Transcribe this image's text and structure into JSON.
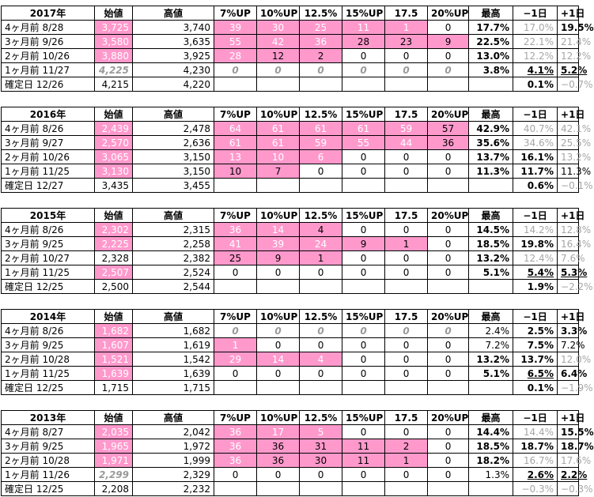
{
  "headers": [
    "始値",
    "高値",
    "7%UP",
    "10%UP",
    "12.5%",
    "15%UP",
    "17.5",
    "20%UP",
    "最高",
    "−1日",
    "+1日"
  ],
  "colors": {
    "pink_fill": "#ff99cc",
    "gray_text": "#a6a6a6",
    "white_text": "#ffffff"
  },
  "blocks": [
    {
      "year": "2017年",
      "rows": [
        {
          "label": "4ヶ月前  8/28",
          "open": "3,725",
          "high": "3,740",
          "up": [
            "39",
            "30",
            "25",
            "11",
            "1",
            "0"
          ],
          "max": "17.7%",
          "m1": "17.0%",
          "p1": "19.5%"
        },
        {
          "label": "3ヶ月前  9/26",
          "open": "3,580",
          "high": "3,635",
          "up": [
            "55",
            "42",
            "36",
            "28",
            "23",
            "9"
          ],
          "max": "22.5%",
          "m1": "22.1%",
          "p1": "21.4%"
        },
        {
          "label": "2ヶ月前  10/26",
          "open": "3,880",
          "high": "3,925",
          "up": [
            "28",
            "12",
            "2",
            "0",
            "0",
            "0"
          ],
          "max": "13.0%",
          "m1": "12.2%",
          "p1": "12.2%"
        },
        {
          "label": "1ヶ月前  11/27",
          "open": "4,225",
          "high": "4,230",
          "up": [
            "0",
            "0",
            "0",
            "0",
            "0",
            "0"
          ],
          "max": "3.8%",
          "m1": "4.1%",
          "p1": "5.2%"
        },
        {
          "label": "確定日  12/26",
          "open": "4,215",
          "high": "4,220",
          "m1": "0.1%",
          "p1": "−0.7%"
        }
      ]
    },
    {
      "year": "2016年",
      "rows": [
        {
          "label": "4ヶ月前  8/26",
          "open": "2,439",
          "high": "2,478",
          "up": [
            "64",
            "61",
            "61",
            "61",
            "59",
            "57"
          ],
          "max": "42.9%",
          "m1": "40.7%",
          "p1": "42.1%"
        },
        {
          "label": "3ヶ月前  9/27",
          "open": "2,570",
          "high": "2,636",
          "up": [
            "61",
            "61",
            "59",
            "55",
            "44",
            "36"
          ],
          "max": "35.6%",
          "m1": "34.6%",
          "p1": "25.5%"
        },
        {
          "label": "2ヶ月前  10/26",
          "open": "3,065",
          "high": "3,150",
          "up": [
            "13",
            "10",
            "6",
            "0",
            "0",
            "0"
          ],
          "max": "13.7%",
          "m1": "16.1%",
          "p1": "13.2%"
        },
        {
          "label": "1ヶ月前  11/25",
          "open": "3,130",
          "high": "3,150",
          "up": [
            "10",
            "7",
            "0",
            "0",
            "0",
            "0"
          ],
          "max": "11.3%",
          "m1": "11.7%",
          "p1": "11.3%"
        },
        {
          "label": "確定日  12/27",
          "open": "3,435",
          "high": "3,455",
          "m1": "0.6%",
          "p1": "−0.1%"
        }
      ]
    },
    {
      "year": "2015年",
      "rows": [
        {
          "label": "4ヶ月前  8/26",
          "open": "2,302",
          "high": "2,315",
          "up": [
            "36",
            "14",
            "4",
            "0",
            "0",
            "0"
          ],
          "max": "14.5%",
          "m1": "14.2%",
          "p1": "12.8%"
        },
        {
          "label": "3ヶ月前  9/25",
          "open": "2,225",
          "high": "2,258",
          "up": [
            "41",
            "39",
            "24",
            "9",
            "1",
            "0"
          ],
          "max": "18.5%",
          "m1": "19.8%",
          "p1": "16.4%"
        },
        {
          "label": "2ヶ月前  10/27",
          "open": "2,328",
          "high": "2,382",
          "up": [
            "25",
            "9",
            "1",
            "0",
            "0",
            "0"
          ],
          "max": "13.2%",
          "m1": "12.4%",
          "p1": "7.6%"
        },
        {
          "label": "1ヶ月前  11/25",
          "open": "2,507",
          "high": "2,524",
          "up": [
            "0",
            "0",
            "0",
            "0",
            "0",
            "0"
          ],
          "max": "5.1%",
          "m1": "5.4%",
          "p1": "5.3%"
        },
        {
          "label": "確定日  12/25",
          "open": "2,500",
          "high": "2,544",
          "m1": "1.9%",
          "p1": "−2.2%"
        }
      ]
    },
    {
      "year": "2014年",
      "rows": [
        {
          "label": "4ヶ月前  8/26",
          "open": "1,682",
          "high": "1,682",
          "up": [
            "0",
            "0",
            "0",
            "0",
            "0",
            "0"
          ],
          "max": "2.4%",
          "m1": "2.5%",
          "p1": "3.3%"
        },
        {
          "label": "3ヶ月前  9/25",
          "open": "1,607",
          "high": "1,619",
          "up": [
            "1",
            "0",
            "0",
            "0",
            "0",
            "0"
          ],
          "max": "7.2%",
          "m1": "7.5%",
          "p1": "7.2%"
        },
        {
          "label": "2ヶ月前  10/28",
          "open": "1,521",
          "high": "1,542",
          "up": [
            "29",
            "14",
            "4",
            "0",
            "0",
            "0"
          ],
          "max": "13.2%",
          "m1": "13.7%",
          "p1": "12.0%"
        },
        {
          "label": "1ヶ月前  11/25",
          "open": "1,639",
          "high": "1,639",
          "up": [
            "0",
            "0",
            "0",
            "0",
            "0",
            "0"
          ],
          "max": "5.1%",
          "m1": "6.5%",
          "p1": "6.4%"
        },
        {
          "label": "確定日  12/25",
          "open": "1,715",
          "high": "1,715",
          "m1": "0.1%",
          "p1": "−1.9%"
        }
      ]
    },
    {
      "year": "2013年",
      "rows": [
        {
          "label": "4ヶ月前  8/27",
          "open": "2,035",
          "high": "2,042",
          "up": [
            "36",
            "17",
            "5",
            "0",
            "0",
            "0"
          ],
          "max": "14.4%",
          "m1": "14.4%",
          "p1": "15.5%"
        },
        {
          "label": "3ヶ月前  9/25",
          "open": "1,965",
          "high": "1,972",
          "up": [
            "36",
            "36",
            "31",
            "11",
            "2",
            "0"
          ],
          "max": "18.5%",
          "m1": "18.7%",
          "p1": "18.7%"
        },
        {
          "label": "2ヶ月前  10/28",
          "open": "1,971",
          "high": "1,999",
          "up": [
            "36",
            "36",
            "30",
            "11",
            "1",
            "0"
          ],
          "max": "18.2%",
          "m1": "16.7%",
          "p1": "17.6%"
        },
        {
          "label": "1ヶ月前  11/26",
          "open": "2,299",
          "high": "2,329",
          "up": [
            "0",
            "0",
            "0",
            "0",
            "0",
            "0"
          ],
          "max": "1.3%",
          "m1": "2.6%",
          "p1": "2.2%"
        },
        {
          "label": "確定日  12/25",
          "open": "2,208",
          "high": "2,232",
          "m1": "−0.3%",
          "p1": "−0.3%"
        }
      ]
    }
  ]
}
